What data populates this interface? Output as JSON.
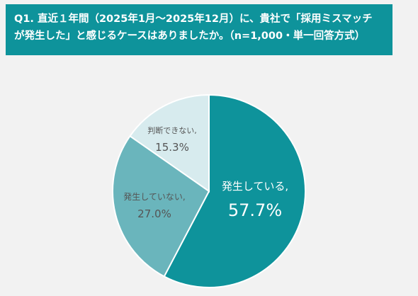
{
  "header": {
    "line1": "Q1. 直近１年間（2025年1月～2025年12月）に、貴社で「採用ミスマッチ",
    "line2": "が発生した」と感じるケースはありましたか。（n=1,000・単一回答方式）"
  },
  "colors": {
    "header_bg": "#0e939b",
    "slice_1": "#0e939b",
    "slice_2": "#6ab5bc",
    "slice_3": "#d7ebee"
  },
  "chart_data": {
    "type": "pie",
    "slices": [
      {
        "label": "発生している,",
        "value": 57.7,
        "value_label": "57.7%",
        "color": "#0e939b"
      },
      {
        "label": "発生していない,",
        "value": 27.0,
        "value_label": "27.0%",
        "color": "#6ab5bc"
      },
      {
        "label": "判断できない,",
        "value": 15.3,
        "value_label": "15.3%",
        "color": "#d7ebee"
      }
    ]
  }
}
